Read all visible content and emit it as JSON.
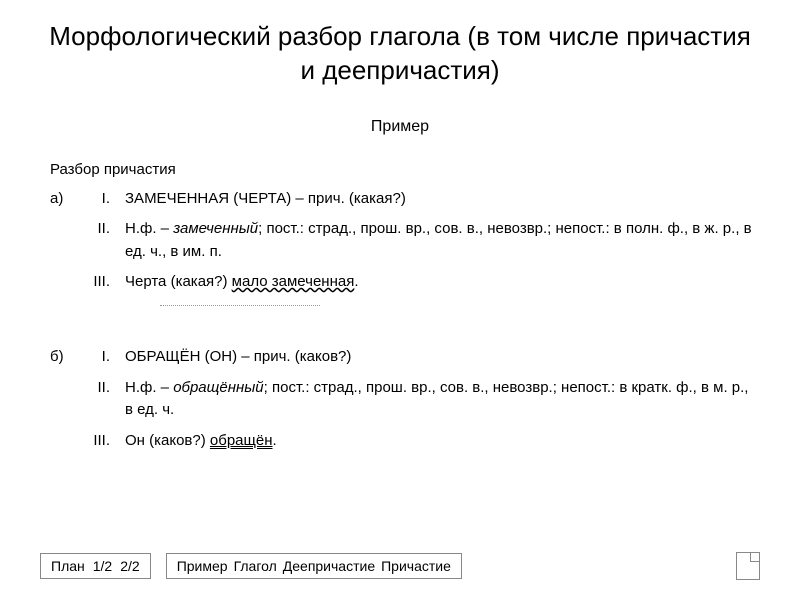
{
  "title": "Морфологический разбор глагола (в том числе причастия и деепричастия)",
  "subtitle": "Пример",
  "section_label": "Разбор причастия",
  "example_a": {
    "letter": "а)",
    "items": [
      {
        "roman": "I.",
        "prefix": "ЗАМЕЧЕННАЯ (",
        "subject": "ЧЕРТА",
        "suffix": ") – прич. (какая?)"
      },
      {
        "roman": "II.",
        "text_plain": "Н.ф. – ",
        "text_italic": "замеченный",
        "text_after": "; пост.: страд., прош. вр., сов. в., невозвр.; непост.: в полн. ф., в ж. р., в ед. ч., в им. п."
      },
      {
        "roman": "III.",
        "subject": "Черта",
        "middle": " (какая?) ",
        "predicate": "мало замеченная",
        "end": "."
      }
    ]
  },
  "example_b": {
    "letter": "б)",
    "items": [
      {
        "roman": "I.",
        "prefix": "ОБРАЩЁН (",
        "subject": "ОН",
        "suffix": ") – прич. (каков?)"
      },
      {
        "roman": "II.",
        "text_plain": "Н.ф. – ",
        "text_italic": "обращённый",
        "text_after": "; пост.: страд., прош. вр., сов. в., невозвр.; непост.: в кратк. ф., в м. р., в ед. ч."
      },
      {
        "roman": "III.",
        "subject": "Он",
        "middle": " (каков?) ",
        "predicate": "обращён",
        "end": "."
      }
    ]
  },
  "bottom": {
    "plan_label": "План",
    "plan_current": "1/2",
    "plan_total": "2/2",
    "example_label": "Пример",
    "tabs": [
      "Глагол",
      "Деепричастие",
      "Причастие"
    ]
  },
  "colors": {
    "text": "#000000",
    "background": "#ffffff",
    "border": "#888888",
    "dotted": "#999999"
  },
  "fonts": {
    "title_size": 26,
    "body_size": 15,
    "nav_size": 14
  }
}
